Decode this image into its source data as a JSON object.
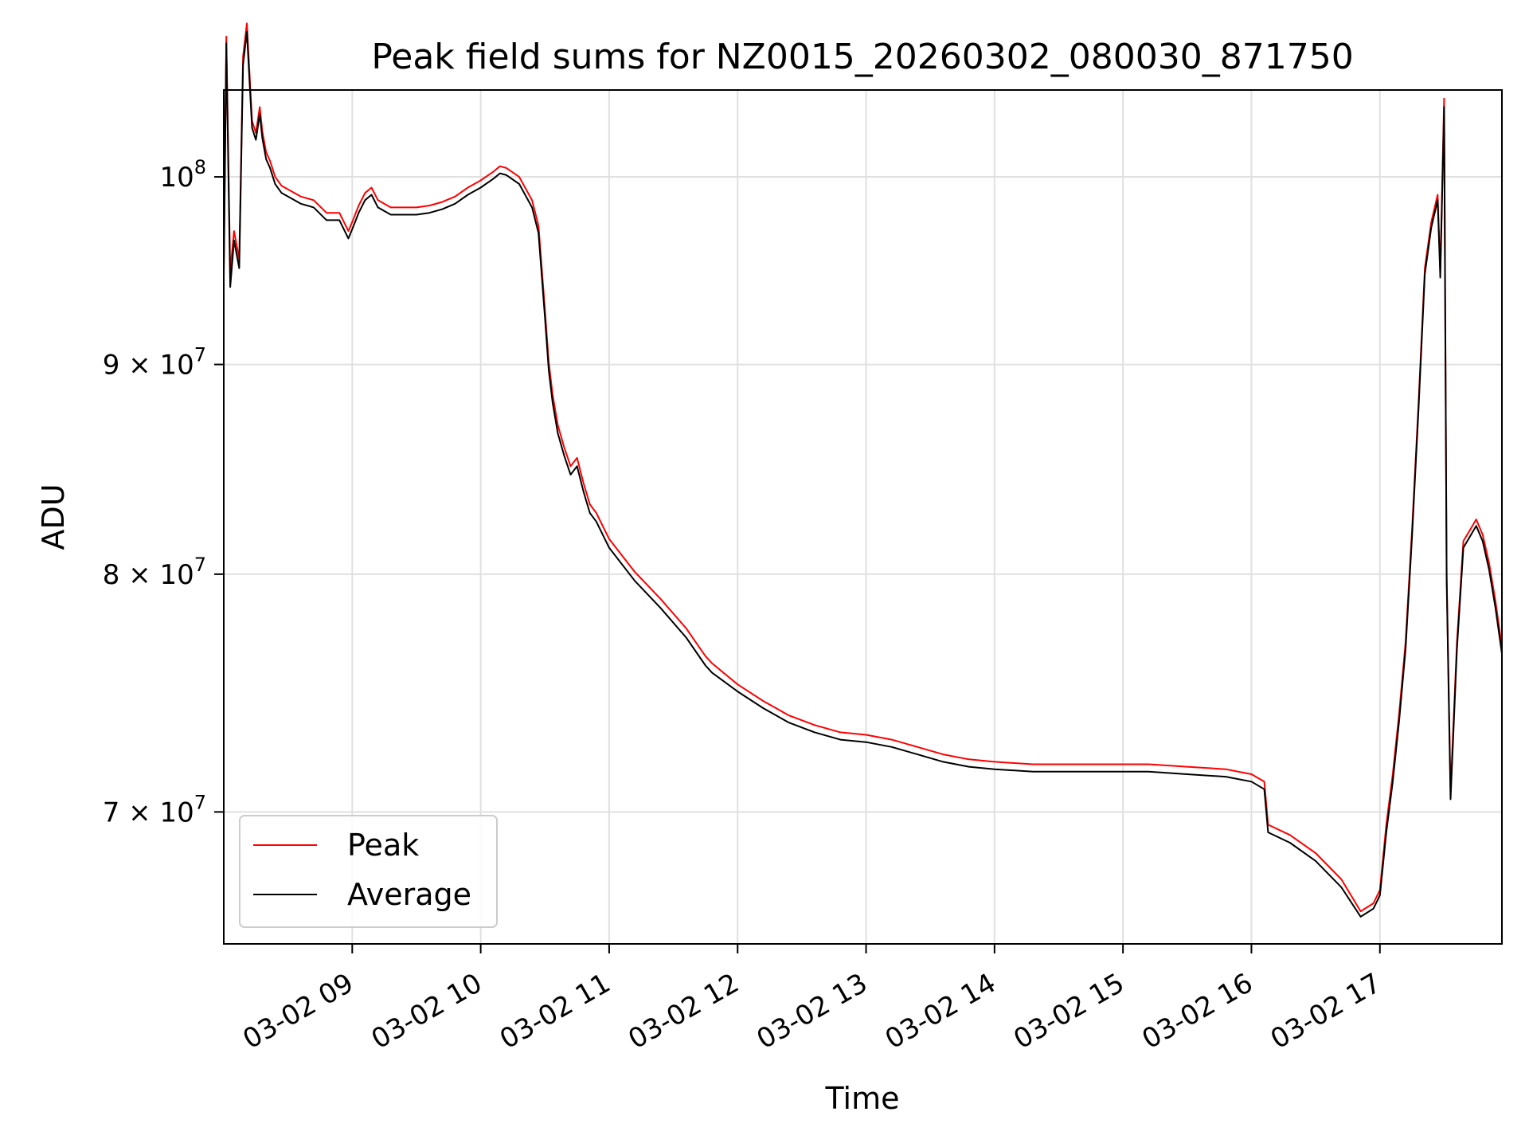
{
  "chart_data": {
    "type": "line",
    "title": "Peak field sums for NZ0015_20260302_080030_871750",
    "xlabel": "Time",
    "ylabel": "ADU",
    "x_unit": "hours (day 03-02)",
    "xlim": [
      8.0,
      17.95
    ],
    "ylim": [
      65000000,
      105000000
    ],
    "y_scale": "log",
    "grid": true,
    "legend_position": "lower-left",
    "x_ticks": [
      {
        "value": 9,
        "label": "03-02 09"
      },
      {
        "value": 10,
        "label": "03-02 10"
      },
      {
        "value": 11,
        "label": "03-02 11"
      },
      {
        "value": 12,
        "label": "03-02 12"
      },
      {
        "value": 13,
        "label": "03-02 13"
      },
      {
        "value": 14,
        "label": "03-02 14"
      },
      {
        "value": 15,
        "label": "03-02 15"
      },
      {
        "value": 16,
        "label": "03-02 16"
      },
      {
        "value": 17,
        "label": "03-02 17"
      }
    ],
    "y_ticks": [
      {
        "value": 70000000,
        "base": "7 × 10",
        "exp": "7"
      },
      {
        "value": 80000000,
        "base": "8 × 10",
        "exp": "7"
      },
      {
        "value": 90000000,
        "base": "9 × 10",
        "exp": "7"
      },
      {
        "value": 100000000,
        "base": "10",
        "exp": "8"
      }
    ],
    "series": [
      {
        "name": "Peak",
        "color": "#ff0000",
        "x": [
          8.0,
          8.02,
          8.05,
          8.08,
          8.12,
          8.15,
          8.18,
          8.22,
          8.25,
          8.28,
          8.3,
          8.33,
          8.36,
          8.4,
          8.45,
          8.5,
          8.55,
          8.6,
          8.7,
          8.8,
          8.9,
          8.97,
          9.0,
          9.05,
          9.1,
          9.15,
          9.2,
          9.3,
          9.4,
          9.5,
          9.6,
          9.7,
          9.8,
          9.9,
          10.0,
          10.1,
          10.15,
          10.2,
          10.3,
          10.4,
          10.45,
          10.5,
          10.53,
          10.56,
          10.6,
          10.65,
          10.7,
          10.75,
          10.8,
          10.85,
          10.9,
          11.0,
          11.2,
          11.4,
          11.6,
          11.75,
          11.8,
          12.0,
          12.2,
          12.4,
          12.6,
          12.8,
          13.0,
          13.2,
          13.4,
          13.6,
          13.8,
          14.0,
          14.3,
          14.6,
          14.9,
          15.2,
          15.5,
          15.8,
          16.0,
          16.1,
          16.13,
          16.3,
          16.5,
          16.7,
          16.85,
          16.95,
          17.0,
          17.05,
          17.1,
          17.15,
          17.2,
          17.25,
          17.3,
          17.35,
          17.4,
          17.45,
          17.47,
          17.5,
          17.52,
          17.55,
          17.6,
          17.65,
          17.7,
          17.75,
          17.8,
          17.85,
          17.9,
          17.95
        ],
        "values": [
          95000000,
          108200000,
          94800000,
          97000000,
          95500000,
          107000000,
          109000000,
          103200000,
          102500000,
          104000000,
          102600000,
          101400000,
          100900000,
          100000000,
          99500000,
          99300000,
          99100000,
          98900000,
          98700000,
          98000000,
          98000000,
          97000000,
          97500000,
          98400000,
          99100000,
          99400000,
          98700000,
          98300000,
          98300000,
          98300000,
          98400000,
          98600000,
          98900000,
          99400000,
          99800000,
          100300000,
          100600000,
          100500000,
          100000000,
          98700000,
          97300000,
          92800000,
          90100000,
          88500000,
          87000000,
          85900000,
          85000000,
          85400000,
          84200000,
          83200000,
          82800000,
          81600000,
          80100000,
          78900000,
          77600000,
          76400000,
          76100000,
          75200000,
          74500000,
          73900000,
          73500000,
          73200000,
          73100000,
          72900000,
          72600000,
          72300000,
          72100000,
          72000000,
          71900000,
          71900000,
          71900000,
          71900000,
          71800000,
          71700000,
          71500000,
          71200000,
          69500000,
          69100000,
          68400000,
          67400000,
          66200000,
          66500000,
          67000000,
          69500000,
          71500000,
          74000000,
          77000000,
          82000000,
          88000000,
          95000000,
          97500000,
          99000000,
          94800000,
          104500000,
          80000000,
          70800000,
          77000000,
          81500000,
          82000000,
          82500000,
          81800000,
          80500000,
          78800000,
          76800000
        ]
      },
      {
        "name": "Average",
        "color": "#000000",
        "x": [
          8.0,
          8.02,
          8.05,
          8.08,
          8.12,
          8.15,
          8.18,
          8.22,
          8.25,
          8.28,
          8.3,
          8.33,
          8.36,
          8.4,
          8.45,
          8.5,
          8.55,
          8.6,
          8.7,
          8.8,
          8.9,
          8.97,
          9.0,
          9.05,
          9.1,
          9.15,
          9.2,
          9.3,
          9.4,
          9.5,
          9.6,
          9.7,
          9.8,
          9.9,
          10.0,
          10.1,
          10.15,
          10.2,
          10.3,
          10.4,
          10.45,
          10.5,
          10.53,
          10.56,
          10.6,
          10.65,
          10.7,
          10.75,
          10.8,
          10.85,
          10.9,
          11.0,
          11.2,
          11.4,
          11.6,
          11.75,
          11.8,
          12.0,
          12.2,
          12.4,
          12.6,
          12.8,
          13.0,
          13.2,
          13.4,
          13.6,
          13.8,
          14.0,
          14.3,
          14.6,
          14.9,
          15.2,
          15.5,
          15.8,
          16.0,
          16.1,
          16.13,
          16.3,
          16.5,
          16.7,
          16.85,
          16.95,
          17.0,
          17.05,
          17.1,
          17.15,
          17.2,
          17.25,
          17.3,
          17.35,
          17.4,
          17.45,
          17.47,
          17.5,
          17.52,
          17.55,
          17.6,
          17.65,
          17.7,
          17.75,
          17.8,
          17.85,
          17.9,
          17.95
        ],
        "values": [
          94600000,
          107800000,
          94000000,
          96500000,
          95000000,
          106500000,
          108500000,
          102800000,
          102100000,
          103600000,
          102200000,
          101000000,
          100500000,
          99600000,
          99100000,
          98900000,
          98700000,
          98500000,
          98300000,
          97600000,
          97600000,
          96600000,
          97100000,
          98000000,
          98700000,
          99000000,
          98300000,
          97900000,
          97900000,
          97900000,
          98000000,
          98200000,
          98500000,
          99000000,
          99400000,
          99900000,
          100200000,
          100100000,
          99600000,
          98300000,
          96900000,
          92400000,
          89700000,
          88100000,
          86600000,
          85500000,
          84600000,
          85000000,
          83800000,
          82800000,
          82400000,
          81200000,
          79700000,
          78500000,
          77200000,
          76000000,
          75700000,
          74900000,
          74200000,
          73600000,
          73200000,
          72900000,
          72800000,
          72600000,
          72300000,
          72000000,
          71800000,
          71700000,
          71600000,
          71600000,
          71600000,
          71600000,
          71500000,
          71400000,
          71200000,
          70900000,
          69200000,
          68800000,
          68100000,
          67100000,
          66000000,
          66300000,
          66800000,
          69200000,
          71200000,
          73700000,
          76700000,
          81700000,
          87700000,
          94700000,
          97200000,
          98700000,
          94500000,
          104000000,
          79700000,
          70500000,
          76700000,
          81200000,
          81700000,
          82200000,
          81500000,
          80200000,
          78500000,
          76500000
        ]
      }
    ]
  }
}
